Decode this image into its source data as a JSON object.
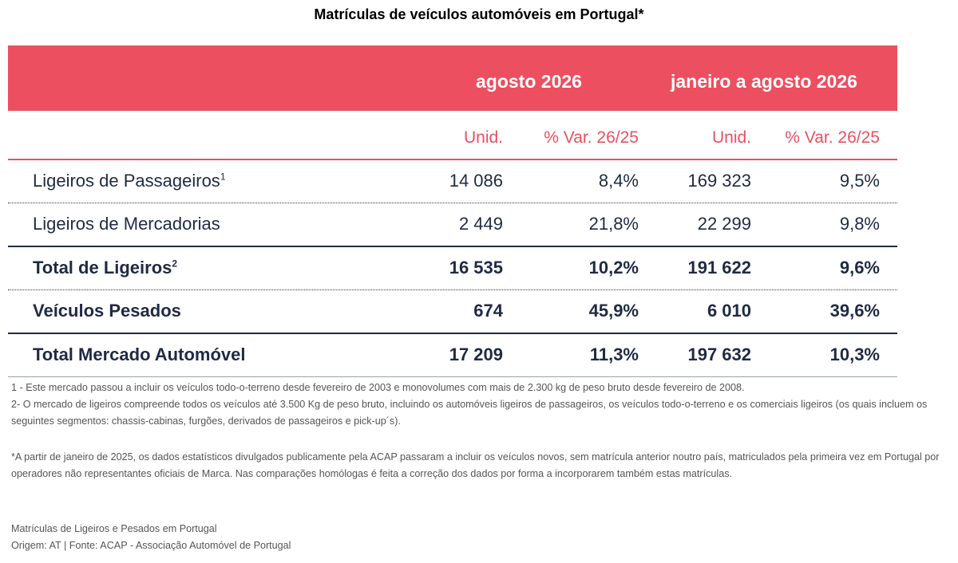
{
  "title": "Matrículas de veículos automóveis em Portugal*",
  "periods": [
    "agosto 2026",
    "janeiro a agosto 2026"
  ],
  "subheaders": [
    "Unid.",
    "% Var. 26/25",
    "Unid.",
    "% Var. 26/25"
  ],
  "rows": [
    {
      "label": "Ligeiros de Passageiros",
      "sup": "1",
      "values": [
        "14 086",
        "8,4%",
        "169 323",
        "9,5%"
      ]
    },
    {
      "label": "Ligeiros de Mercadorias",
      "sup": "",
      "values": [
        "2 449",
        "21,8%",
        "22 299",
        "9,8%"
      ]
    },
    {
      "label": "Total de Ligeiros",
      "sup": "2",
      "values": [
        "16 535",
        "10,2%",
        "191 622",
        "9,6%"
      ]
    },
    {
      "label": "Veículos Pesados",
      "sup": "",
      "values": [
        "674",
        "45,9%",
        "6 010",
        "39,6%"
      ]
    },
    {
      "label": "Total Mercado Automóvel",
      "sup": "",
      "values": [
        "17 209",
        "11,3%",
        "197 632",
        "10,3%"
      ]
    }
  ],
  "footnotes": [
    "1 - Este mercado passou a incluir os veículos todo-o-terreno desde fevereiro de 2003 e monovolumes com mais de 2.300 kg de peso bruto desde fevereiro de 2008.",
    "2- O mercado de ligeiros compreende todos os veículos até 3.500 Kg de peso bruto, incluindo os automóveis ligeiros de passageiros, os veículos todo-o-terreno e os comerciais ligeiros (os quais incluem os seguintes segmentos: chassis-cabinas, furgões, derivados de passageiros e pick-up´s)."
  ],
  "asterisk_note": "*A partir de janeiro de 2025, os dados estatísticos divulgados publicamente pela ACAP passaram a incluir os veículos novos, sem matrícula anterior noutro país, matriculados pela primeira vez em Portugal por operadores não representantes oficiais de Marca. Nas comparações homólogas é feita a correção dos dados por forma a incorporarem também estas matrículas.",
  "source_lines": [
    "Matrículas de Ligeiros e Pesados em Portugal",
    "Origem: AT | Fonte: ACAP - Associação Automóvel de Portugal"
  ],
  "colors": {
    "accent": "#ec4f5f",
    "navy": "#1f2a44"
  }
}
